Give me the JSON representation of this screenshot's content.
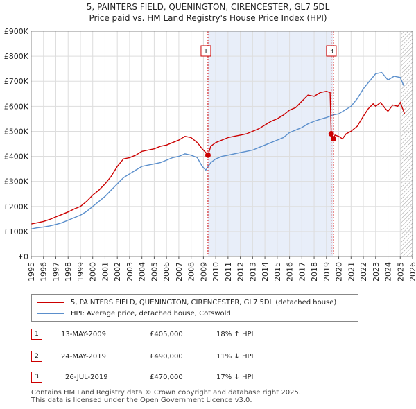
{
  "header": {
    "title_line1": "5, PAINTERS FIELD, QUENINGTON, CIRENCESTER, GL7 5DL",
    "title_line2": "Price paid vs. HM Land Registry's House Price Index (HPI)"
  },
  "legend": {
    "property_label": "5, PAINTERS FIELD, QUENINGTON, CIRENCESTER, GL7 5DL (detached house)",
    "hpi_label": "HPI: Average price, detached house, Cotswold"
  },
  "sales": [
    {
      "num": "1",
      "date": "13-MAY-2009",
      "price": "£405,000",
      "hpi_rel": "18% ↑ HPI"
    },
    {
      "num": "2",
      "date": "24-MAY-2019",
      "price": "£490,000",
      "hpi_rel": "11% ↓ HPI"
    },
    {
      "num": "3",
      "date": "26-JUL-2019",
      "price": "£470,000",
      "hpi_rel": "17% ↓ HPI"
    }
  ],
  "footer": {
    "line1": "Contains HM Land Registry data © Crown copyright and database right 2025.",
    "line2": "This data is licensed under the Open Government Licence v3.0."
  },
  "chart_data": {
    "type": "line",
    "xlim": [
      1995,
      2026
    ],
    "ylim": [
      0,
      900000
    ],
    "x_ticks": [
      "1995",
      "1996",
      "1997",
      "1998",
      "1999",
      "2000",
      "2001",
      "2002",
      "2003",
      "2004",
      "2005",
      "2006",
      "2007",
      "2008",
      "2009",
      "2010",
      "2011",
      "2012",
      "2013",
      "2014",
      "2015",
      "2016",
      "2017",
      "2018",
      "2019",
      "2020",
      "2021",
      "2022",
      "2023",
      "2024",
      "2025",
      "2026"
    ],
    "y_ticks": [
      {
        "value": 0,
        "label": "£0"
      },
      {
        "value": 100000,
        "label": "£100K"
      },
      {
        "value": 200000,
        "label": "£200K"
      },
      {
        "value": 300000,
        "label": "£300K"
      },
      {
        "value": 400000,
        "label": "£400K"
      },
      {
        "value": 500000,
        "label": "£500K"
      },
      {
        "value": 600000,
        "label": "£600K"
      },
      {
        "value": 700000,
        "label": "£700K"
      },
      {
        "value": 800000,
        "label": "£800K"
      },
      {
        "value": 900000,
        "label": "£900K"
      }
    ],
    "shaded_range": [
      2009.37,
      2019.57
    ],
    "future_hatch_from": 2025.0,
    "colors": {
      "property": "#cc0000",
      "hpi": "#5b8fcc",
      "shade": "#e8eef9",
      "marker": "#cc0000"
    },
    "series": [
      {
        "name": "5, PAINTERS FIELD, QUENINGTON, CIRENCESTER, GL7 5DL (detached house)",
        "color": "#cc0000",
        "x": [
          1995.0,
          1995.5,
          1996.0,
          1996.5,
          1997.0,
          1997.5,
          1998.0,
          1998.5,
          1999.0,
          1999.5,
          2000.0,
          2000.5,
          2001.0,
          2001.5,
          2002.0,
          2002.5,
          2003.0,
          2003.5,
          2004.0,
          2004.5,
          2005.0,
          2005.5,
          2006.0,
          2006.5,
          2007.0,
          2007.5,
          2008.0,
          2008.5,
          2008.9,
          2009.2,
          2009.37,
          2009.6,
          2010.0,
          2010.5,
          2011.0,
          2011.5,
          2012.0,
          2012.5,
          2013.0,
          2013.5,
          2014.0,
          2014.5,
          2015.0,
          2015.5,
          2016.0,
          2016.5,
          2017.0,
          2017.5,
          2018.0,
          2018.5,
          2019.0,
          2019.3,
          2019.39,
          2019.45,
          2019.5,
          2019.57,
          2019.7,
          2020.0,
          2020.3,
          2020.6,
          2021.0,
          2021.5,
          2022.0,
          2022.4,
          2022.8,
          2023.0,
          2023.4,
          2023.8,
          2024.0,
          2024.4,
          2024.8,
          2025.0,
          2025.2,
          2025.35
        ],
        "values": [
          130000,
          135000,
          140000,
          148000,
          158000,
          168000,
          178000,
          190000,
          200000,
          220000,
          245000,
          265000,
          290000,
          320000,
          360000,
          390000,
          395000,
          405000,
          420000,
          425000,
          430000,
          440000,
          445000,
          455000,
          465000,
          480000,
          475000,
          455000,
          430000,
          415000,
          405000,
          440000,
          455000,
          465000,
          475000,
          480000,
          485000,
          490000,
          500000,
          510000,
          525000,
          540000,
          550000,
          565000,
          585000,
          595000,
          620000,
          645000,
          640000,
          655000,
          660000,
          655000,
          490000,
          475000,
          480000,
          470000,
          485000,
          480000,
          470000,
          490000,
          500000,
          520000,
          560000,
          590000,
          610000,
          600000,
          615000,
          590000,
          580000,
          605000,
          600000,
          615000,
          590000,
          570000
        ]
      },
      {
        "name": "HPI: Average price, detached house, Cotswold",
        "color": "#5b8fcc",
        "x": [
          1995.0,
          1995.5,
          1996.0,
          1996.5,
          1997.0,
          1997.5,
          1998.0,
          1998.5,
          1999.0,
          1999.5,
          2000.0,
          2000.5,
          2001.0,
          2001.5,
          2002.0,
          2002.5,
          2003.0,
          2003.5,
          2004.0,
          2004.5,
          2005.0,
          2005.5,
          2006.0,
          2006.5,
          2007.0,
          2007.5,
          2008.0,
          2008.5,
          2008.9,
          2009.2,
          2009.6,
          2010.0,
          2010.5,
          2011.0,
          2011.5,
          2012.0,
          2012.5,
          2013.0,
          2013.5,
          2014.0,
          2014.5,
          2015.0,
          2015.5,
          2016.0,
          2016.5,
          2017.0,
          2017.5,
          2018.0,
          2018.5,
          2019.0,
          2019.5,
          2020.0,
          2020.5,
          2021.0,
          2021.5,
          2022.0,
          2022.5,
          2023.0,
          2023.5,
          2024.0,
          2024.5,
          2025.0,
          2025.3
        ],
        "values": [
          110000,
          115000,
          118000,
          122000,
          128000,
          135000,
          145000,
          155000,
          165000,
          180000,
          200000,
          220000,
          240000,
          265000,
          290000,
          315000,
          330000,
          345000,
          360000,
          365000,
          370000,
          375000,
          385000,
          395000,
          400000,
          410000,
          405000,
          395000,
          360000,
          345000,
          375000,
          390000,
          400000,
          405000,
          410000,
          415000,
          420000,
          425000,
          435000,
          445000,
          455000,
          465000,
          475000,
          495000,
          505000,
          515000,
          530000,
          540000,
          548000,
          555000,
          565000,
          570000,
          585000,
          600000,
          630000,
          670000,
          700000,
          730000,
          735000,
          705000,
          720000,
          715000,
          680000
        ]
      }
    ],
    "sale_points": [
      {
        "label": "1",
        "x": 2009.37,
        "y": 405000
      },
      {
        "label": "2",
        "x": 2019.39,
        "y": 490000
      },
      {
        "label": "3",
        "x": 2019.57,
        "y": 470000
      }
    ]
  }
}
